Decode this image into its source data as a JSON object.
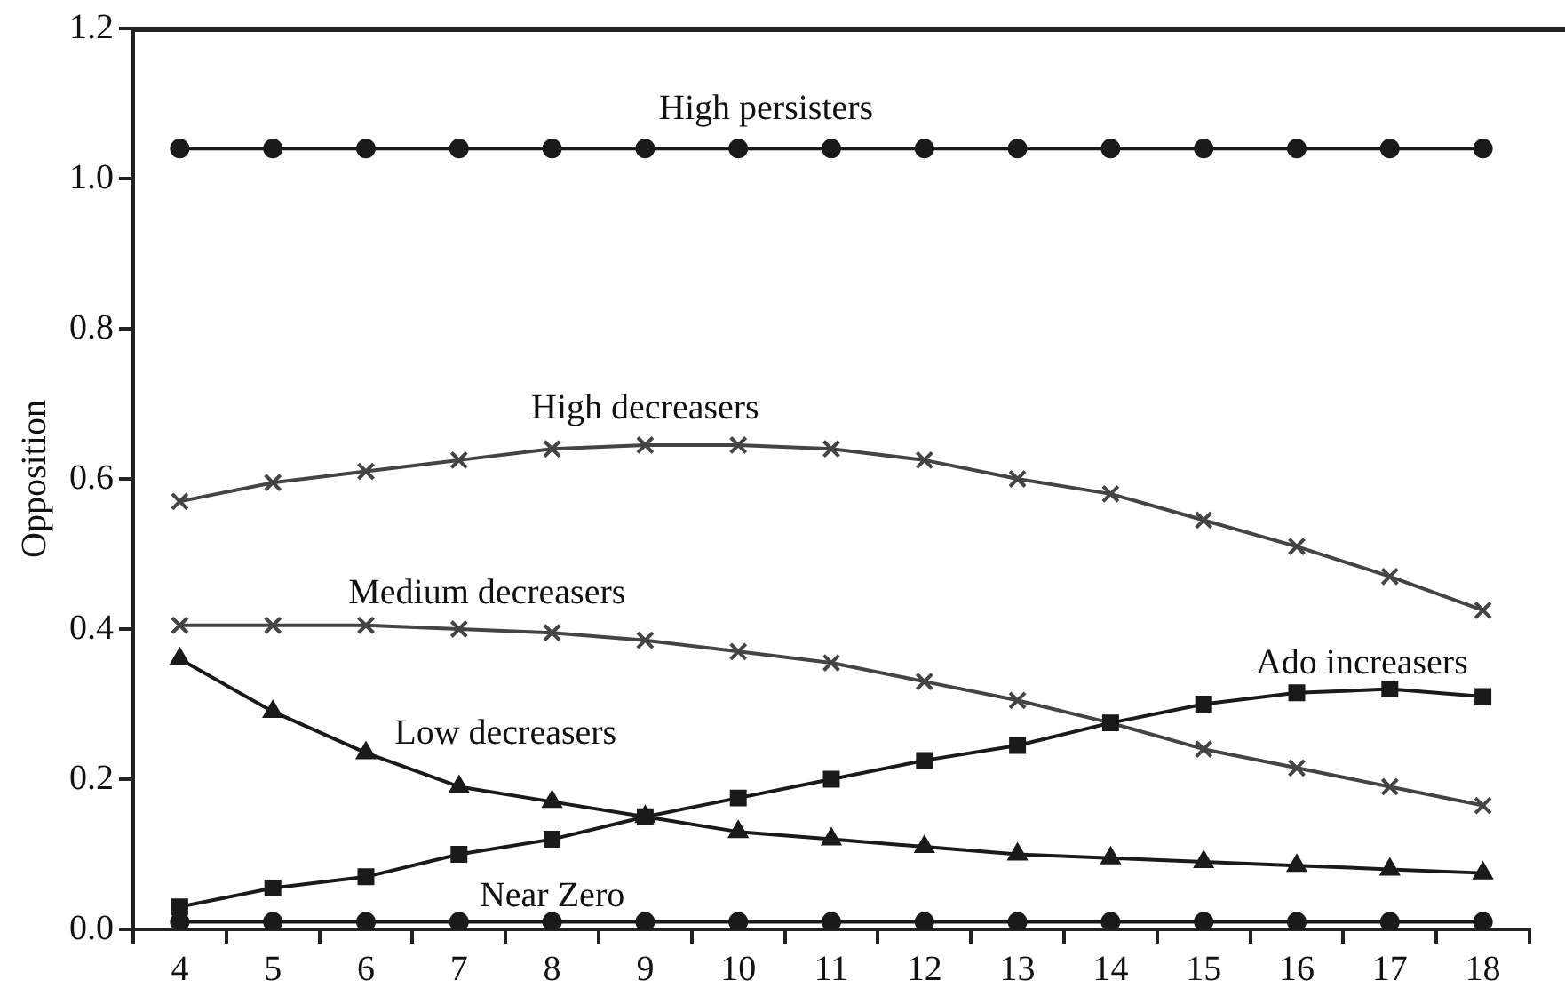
{
  "chart_data": {
    "type": "line",
    "ylabel": "Opposition",
    "categories": [
      "4",
      "5",
      "6",
      "7",
      "8",
      "9",
      "10",
      "11",
      "12",
      "13",
      "14",
      "15",
      "16",
      "17",
      "18"
    ],
    "ylim": [
      0,
      1.2
    ],
    "yticks": [
      {
        "value": 0,
        "label": "0.0"
      },
      0.2,
      0.4,
      0.6,
      0.8,
      {
        "value": 1,
        "label": "1.0"
      },
      1.2
    ],
    "grid": false,
    "legend": false,
    "line_style": "solid",
    "series": [
      {
        "name": "High persisters",
        "color": "#1a1a1a",
        "marker": "circle",
        "values": [
          1.04,
          1.04,
          1.04,
          1.04,
          1.04,
          1.04,
          1.04,
          1.04,
          1.04,
          1.04,
          1.04,
          1.04,
          1.04,
          1.04,
          1.04
        ]
      },
      {
        "name": "High decreasers",
        "color": "#444444",
        "marker": "cross",
        "values": [
          0.57,
          0.595,
          0.61,
          0.625,
          0.64,
          0.645,
          0.645,
          0.64,
          0.625,
          0.6,
          0.58,
          0.545,
          0.51,
          0.47,
          0.425
        ]
      },
      {
        "name": "Medium decreasers",
        "color": "#444444",
        "marker": "cross",
        "values": [
          0.405,
          0.405,
          0.405,
          0.4,
          0.395,
          0.385,
          0.37,
          0.355,
          0.33,
          0.305,
          0.275,
          0.24,
          0.215,
          0.19,
          0.165
        ]
      },
      {
        "name": "Low decreasers",
        "color": "#1a1a1a",
        "marker": "triangle",
        "values": [
          0.36,
          0.29,
          0.235,
          0.19,
          0.17,
          0.15,
          0.13,
          0.12,
          0.11,
          0.1,
          0.095,
          0.09,
          0.085,
          0.08,
          0.075
        ]
      },
      {
        "name": "Ado increasers",
        "color": "#1a1a1a",
        "marker": "square",
        "values": [
          0.03,
          0.055,
          0.07,
          0.1,
          0.12,
          0.15,
          0.175,
          0.2,
          0.225,
          0.245,
          0.275,
          0.3,
          0.315,
          0.32,
          0.31
        ]
      },
      {
        "name": "Near Zero",
        "color": "#1a1a1a",
        "marker": "circle",
        "values": [
          0.01,
          0.01,
          0.01,
          0.01,
          0.01,
          0.01,
          0.01,
          0.01,
          0.01,
          0.01,
          0.01,
          0.01,
          0.01,
          0.01,
          0.01
        ]
      }
    ]
  }
}
